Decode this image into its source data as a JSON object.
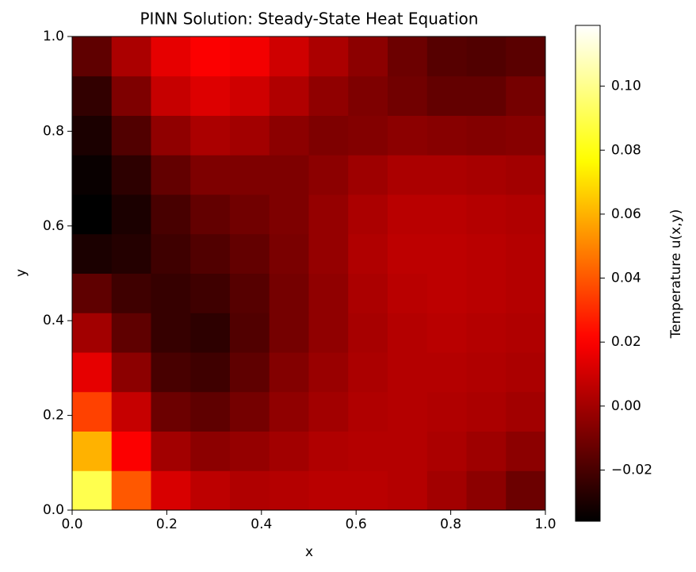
{
  "chart_data": {
    "type": "heatmap",
    "title": "PINN Solution: Steady-State Heat Equation",
    "xlabel": "x",
    "ylabel": "y",
    "xlim": [
      0,
      1
    ],
    "ylim": [
      0,
      1
    ],
    "xticks": [
      {
        "value": 0,
        "label": "0.0"
      },
      {
        "value": 0.2,
        "label": "0.2"
      },
      {
        "value": 0.4,
        "label": "0.4"
      },
      {
        "value": 0.6,
        "label": "0.6"
      },
      {
        "value": 0.8,
        "label": "0.8"
      },
      {
        "value": 1,
        "label": "1.0"
      }
    ],
    "yticks": [
      {
        "value": 0,
        "label": "0.0"
      },
      {
        "value": 0.2,
        "label": "0.2"
      },
      {
        "value": 0.4,
        "label": "0.4"
      },
      {
        "value": 0.6,
        "label": "0.6"
      },
      {
        "value": 0.8,
        "label": "0.8"
      },
      {
        "value": 1,
        "label": "1.0"
      }
    ],
    "colormap": "hot",
    "colorbar_label": "Temperature u(x,y)",
    "clim": [
      -0.036,
      0.119
    ],
    "cticks": [
      {
        "value": -0.02,
        "label": "−0.02"
      },
      {
        "value": 0,
        "label": "0.00"
      },
      {
        "value": 0.02,
        "label": "0.02"
      },
      {
        "value": 0.04,
        "label": "0.04"
      },
      {
        "value": 0.06,
        "label": "0.06"
      },
      {
        "value": 0.08,
        "label": "0.08"
      },
      {
        "value": 0.1,
        "label": "0.10"
      }
    ],
    "z": [
      [
        0.09,
        0.04,
        0.012,
        0.006,
        0.003,
        0.004,
        0.005,
        0.005,
        0.004,
        0.0,
        -0.005,
        -0.012
      ],
      [
        0.06,
        0.02,
        0.0,
        -0.005,
        -0.003,
        0.0,
        0.003,
        0.004,
        0.004,
        0.002,
        -0.001,
        -0.005
      ],
      [
        0.035,
        0.008,
        -0.012,
        -0.015,
        -0.01,
        -0.004,
        0.0,
        0.003,
        0.004,
        0.003,
        0.002,
        0.0
      ],
      [
        0.015,
        -0.005,
        -0.02,
        -0.022,
        -0.015,
        -0.007,
        -0.002,
        0.002,
        0.004,
        0.004,
        0.003,
        0.002
      ],
      [
        0.0,
        -0.015,
        -0.024,
        -0.026,
        -0.018,
        -0.01,
        -0.004,
        0.001,
        0.004,
        0.005,
        0.004,
        0.003
      ],
      [
        -0.015,
        -0.022,
        -0.024,
        -0.022,
        -0.017,
        -0.01,
        -0.004,
        0.002,
        0.005,
        0.006,
        0.005,
        0.004
      ],
      [
        -0.03,
        -0.028,
        -0.022,
        -0.018,
        -0.014,
        -0.009,
        -0.003,
        0.003,
        0.006,
        0.006,
        0.005,
        0.004
      ],
      [
        -0.036,
        -0.03,
        -0.02,
        -0.014,
        -0.011,
        -0.008,
        -0.003,
        0.002,
        0.005,
        0.005,
        0.004,
        0.003
      ],
      [
        -0.034,
        -0.026,
        -0.014,
        -0.008,
        -0.008,
        -0.008,
        -0.005,
        -0.001,
        0.002,
        0.002,
        0.001,
        0.0
      ],
      [
        -0.03,
        -0.018,
        -0.004,
        0.002,
        0.0,
        -0.005,
        -0.008,
        -0.007,
        -0.005,
        -0.006,
        -0.007,
        -0.006
      ],
      [
        -0.025,
        -0.008,
        0.008,
        0.013,
        0.01,
        0.003,
        -0.004,
        -0.008,
        -0.011,
        -0.014,
        -0.014,
        -0.01
      ],
      [
        -0.015,
        0.002,
        0.015,
        0.02,
        0.018,
        0.01,
        0.002,
        -0.005,
        -0.012,
        -0.017,
        -0.018,
        -0.016
      ]
    ]
  }
}
